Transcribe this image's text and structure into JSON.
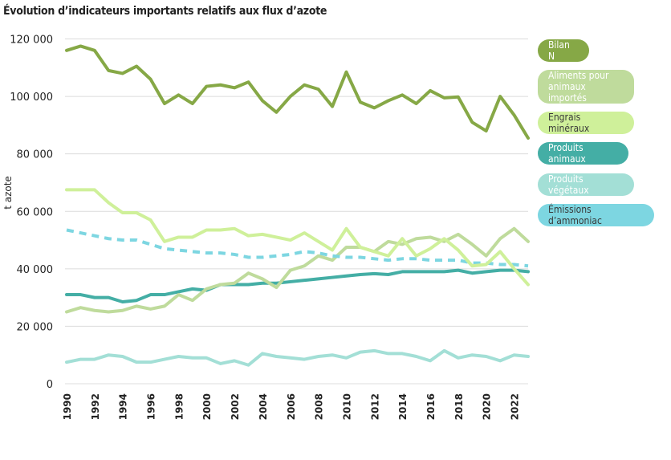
{
  "chart_data": {
    "type": "line",
    "title": "Évolution d’indicateurs importants relatifs aux flux d’azote",
    "ylabel": "t azote",
    "xlabel": "",
    "ylim": [
      0,
      120000
    ],
    "yticks": [
      0,
      20000,
      40000,
      60000,
      80000,
      100000,
      120000
    ],
    "ytick_labels": [
      "0",
      "20 000",
      "40 000",
      "60 000",
      "80 000",
      "100 000",
      "120 000"
    ],
    "xtick_labels": [
      "1990",
      "1992",
      "1994",
      "1996",
      "1998",
      "2000",
      "2002",
      "2004",
      "2006",
      "2008",
      "2010",
      "2012",
      "2014",
      "2016",
      "2018",
      "2020",
      "2022"
    ],
    "grid": "horizontal",
    "legend_position": "right",
    "x": [
      1990,
      1991,
      1992,
      1993,
      1994,
      1995,
      1996,
      1997,
      1998,
      1999,
      2000,
      2001,
      2002,
      2003,
      2004,
      2005,
      2006,
      2007,
      2008,
      2009,
      2010,
      2011,
      2012,
      2013,
      2014,
      2015,
      2016,
      2017,
      2018,
      2019,
      2020,
      2021,
      2022,
      2023
    ],
    "series": [
      {
        "name": "Bilan N",
        "color": "#86a846",
        "text_color": "#ffffff",
        "dashed": false,
        "values": [
          116000,
          117500,
          116000,
          109000,
          108000,
          110500,
          106000,
          97500,
          100500,
          97500,
          103500,
          104000,
          103000,
          105000,
          98500,
          94500,
          100000,
          104000,
          102500,
          96500,
          108500,
          98000,
          96000,
          98500,
          100500,
          97500,
          102000,
          99500,
          99800,
          91000,
          88000,
          100000,
          93500,
          85500
        ]
      },
      {
        "name": "Aliments pour\nanimaux importés",
        "color": "#bfdb9c",
        "text_color": "#ffffff",
        "dashed": false,
        "values": [
          25000,
          26500,
          25500,
          25000,
          25500,
          27000,
          26000,
          27000,
          31000,
          29000,
          33000,
          34500,
          35000,
          38500,
          36500,
          33500,
          39500,
          41000,
          44500,
          43000,
          47500,
          47500,
          46000,
          49500,
          48500,
          50500,
          51000,
          49500,
          52000,
          48500,
          44500,
          50500,
          54000,
          49500
        ]
      },
      {
        "name": "Engrais minéraux",
        "color": "#cff09a",
        "text_color": "#3a3a3a",
        "dashed": false,
        "values": [
          67500,
          67500,
          67500,
          63000,
          59500,
          59500,
          57000,
          49500,
          51000,
          51000,
          53500,
          53500,
          54000,
          51500,
          52000,
          51000,
          50000,
          52500,
          49500,
          46500,
          54000,
          47500,
          46000,
          44500,
          50500,
          44500,
          47000,
          50500,
          46500,
          41000,
          41500,
          46000,
          40000,
          34500
        ]
      },
      {
        "name": "Produits animaux",
        "color": "#44aea5",
        "text_color": "#ffffff",
        "dashed": false,
        "values": [
          31000,
          31000,
          30000,
          30000,
          28500,
          29000,
          31000,
          31000,
          32000,
          33000,
          32500,
          34500,
          34500,
          34500,
          35000,
          35000,
          35500,
          36000,
          36500,
          37000,
          37500,
          38000,
          38300,
          38000,
          39000,
          39000,
          39000,
          39000,
          39500,
          38500,
          39000,
          39500,
          39500,
          39000
        ]
      },
      {
        "name": "Produits végétaux",
        "color": "#a3dfd6",
        "text_color": "#ffffff",
        "dashed": false,
        "values": [
          7500,
          8500,
          8500,
          10000,
          9500,
          7500,
          7500,
          8500,
          9500,
          9000,
          9000,
          7000,
          8000,
          6500,
          10500,
          9500,
          9000,
          8500,
          9500,
          10000,
          9000,
          11000,
          11500,
          10500,
          10500,
          9500,
          8000,
          11500,
          9000,
          10000,
          9500,
          8000,
          10000,
          9500
        ]
      },
      {
        "name": "Émissions d’ammoniac",
        "color": "#7dd6e1",
        "text_color": "#3a3a3a",
        "dashed": true,
        "values": [
          53500,
          52500,
          51500,
          50500,
          50000,
          50000,
          48500,
          47000,
          46500,
          46000,
          45500,
          45500,
          45000,
          44000,
          44000,
          44500,
          45000,
          46000,
          45500,
          44500,
          44000,
          44000,
          43500,
          43000,
          43500,
          43500,
          43000,
          43000,
          43000,
          42000,
          42000,
          41500,
          41500,
          41000
        ]
      }
    ]
  }
}
